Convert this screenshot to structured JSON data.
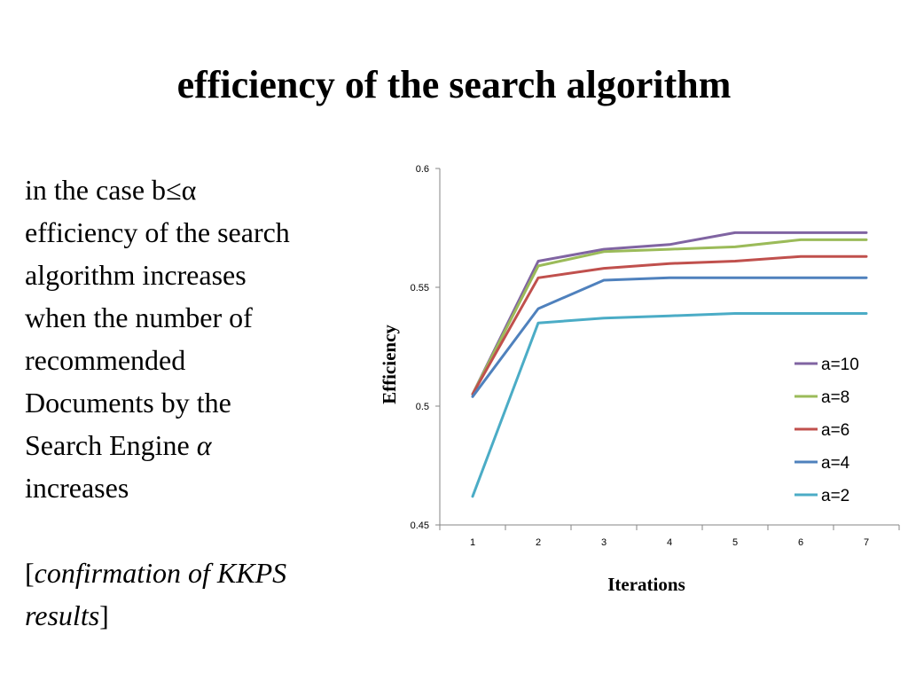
{
  "slide": {
    "title": "efficiency of the search algorithm",
    "text": {
      "line1": "in the case b≤α",
      "line2": "efficiency of the search",
      "line3": "algorithm increases",
      "line4": "when the number of",
      "line5": "recommended",
      "line6": "Documents by the",
      "line7_prefix": "Search Engine ",
      "line7_symbol": "α",
      "line8": "increases",
      "note_open": "[",
      "note_line1": "confirmation of KKPS",
      "note_line2": "results",
      "note_close": "]"
    }
  },
  "chart_data": {
    "type": "line",
    "title": "",
    "xlabel": "Iterations",
    "ylabel": "Efficiency",
    "x": [
      1,
      2,
      3,
      4,
      5,
      6,
      7
    ],
    "ylim": [
      0.45,
      0.6
    ],
    "yticks": [
      "0.45",
      "0.5",
      "0.55",
      "0.6"
    ],
    "grid": false,
    "legend": "right",
    "series": [
      {
        "name": "a=10",
        "color": "#8064A2",
        "values": [
          0.505,
          0.561,
          0.566,
          0.568,
          0.573,
          0.573,
          0.573
        ]
      },
      {
        "name": "a=8",
        "color": "#9BBB59",
        "values": [
          0.505,
          0.559,
          0.565,
          0.566,
          0.567,
          0.57,
          0.57
        ]
      },
      {
        "name": "a=6",
        "color": "#C0504D",
        "values": [
          0.505,
          0.554,
          0.558,
          0.56,
          0.561,
          0.563,
          0.563
        ]
      },
      {
        "name": "a=4",
        "color": "#4F81BD",
        "values": [
          0.504,
          0.541,
          0.553,
          0.554,
          0.554,
          0.554,
          0.554
        ]
      },
      {
        "name": "a=2",
        "color": "#4BACC6",
        "values": [
          0.462,
          0.535,
          0.537,
          0.538,
          0.539,
          0.539,
          0.539
        ]
      }
    ]
  }
}
